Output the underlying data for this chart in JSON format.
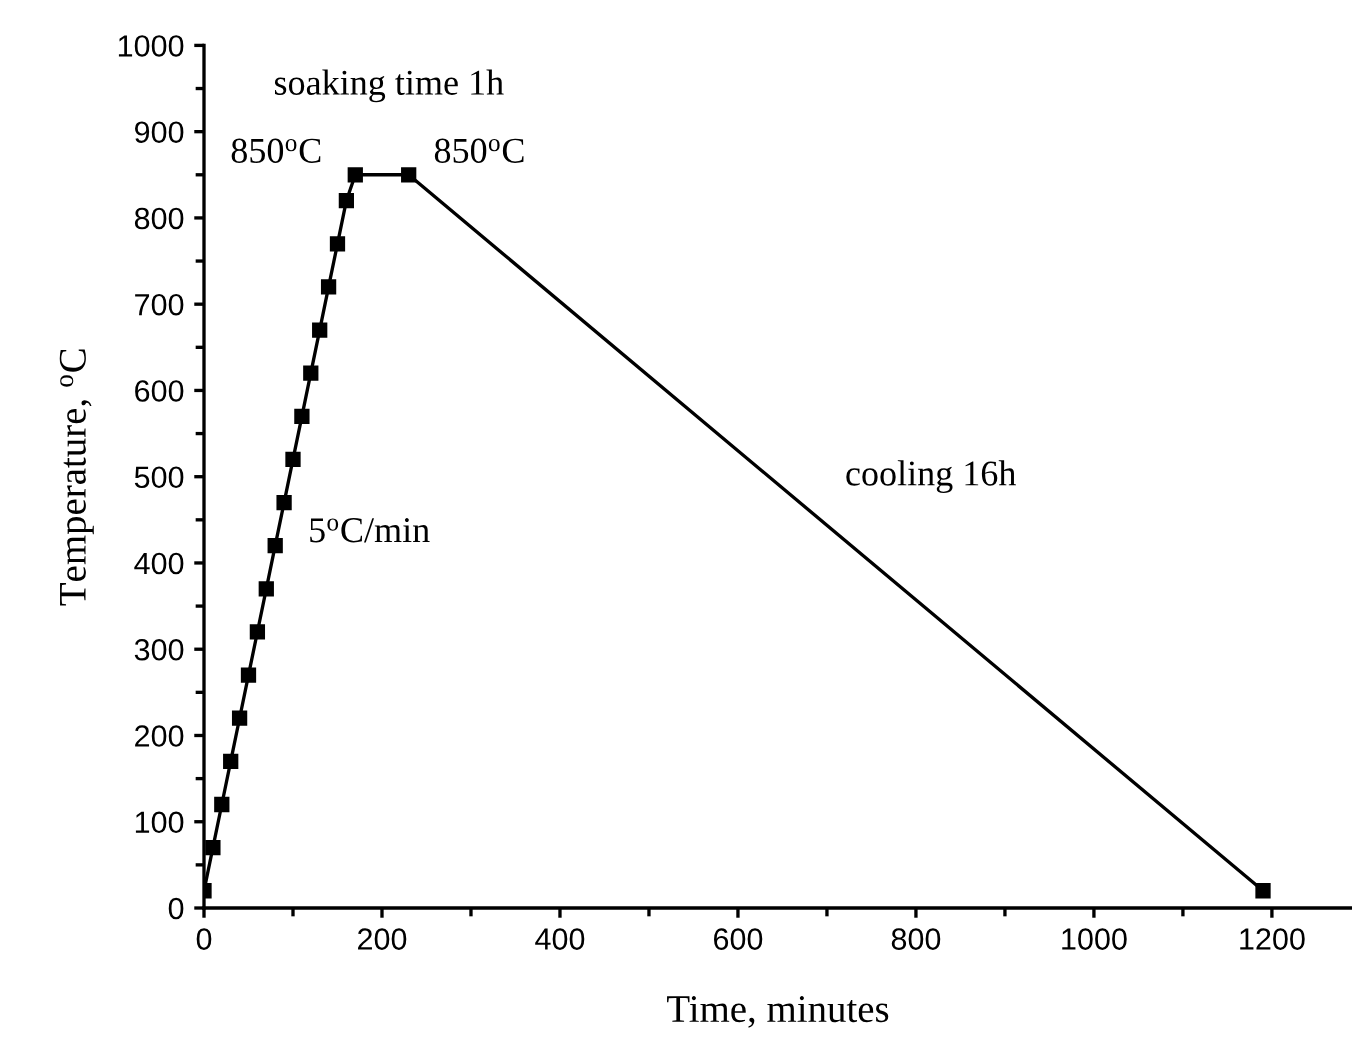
{
  "chart_data": {
    "type": "line",
    "xlabel": "Time, minutes",
    "ylabel": "Temperature, $^{o}$C",
    "x": [
      0,
      10,
      20,
      30,
      40,
      50,
      60,
      70,
      80,
      90,
      100,
      110,
      120,
      130,
      140,
      150,
      160,
      170,
      230,
      1190
    ],
    "series": [
      {
        "color": "#000000",
        "values": [
          20,
          70,
          120,
          170,
          220,
          270,
          320,
          370,
          420,
          470,
          520,
          570,
          620,
          670,
          720,
          770,
          820,
          850,
          850,
          20
        ]
      }
    ],
    "marker": "square",
    "line_style": "solid",
    "grid": false,
    "xlim": [
      0,
      1290
    ],
    "ylim": [
      0,
      1000
    ],
    "xticks": [
      0,
      {
        "value": 100,
        "label": null
      },
      200,
      {
        "value": 300,
        "label": null
      },
      400,
      {
        "value": 500,
        "label": null
      },
      600,
      {
        "value": 700,
        "label": null
      },
      800,
      {
        "value": 900,
        "label": null
      },
      1000,
      {
        "value": 1100,
        "label": null
      },
      1200
    ],
    "yticks": [
      0,
      {
        "value": 50,
        "label": null
      },
      100,
      {
        "value": 150,
        "label": null
      },
      200,
      {
        "value": 250,
        "label": null
      },
      300,
      {
        "value": 350,
        "label": null
      },
      400,
      {
        "value": 450,
        "label": null
      },
      500,
      {
        "value": 550,
        "label": null
      },
      600,
      {
        "value": 650,
        "label": null
      },
      700,
      {
        "value": 750,
        "label": null
      },
      800,
      {
        "value": 850,
        "label": null
      },
      900,
      {
        "value": 950,
        "label": null
      },
      1000
    ],
    "annotations": [
      "soaking time 1h",
      "850$^{o}$C",
      "850$^{o}$C",
      "5$^{o}$C/min",
      "cooling 16h"
    ]
  }
}
